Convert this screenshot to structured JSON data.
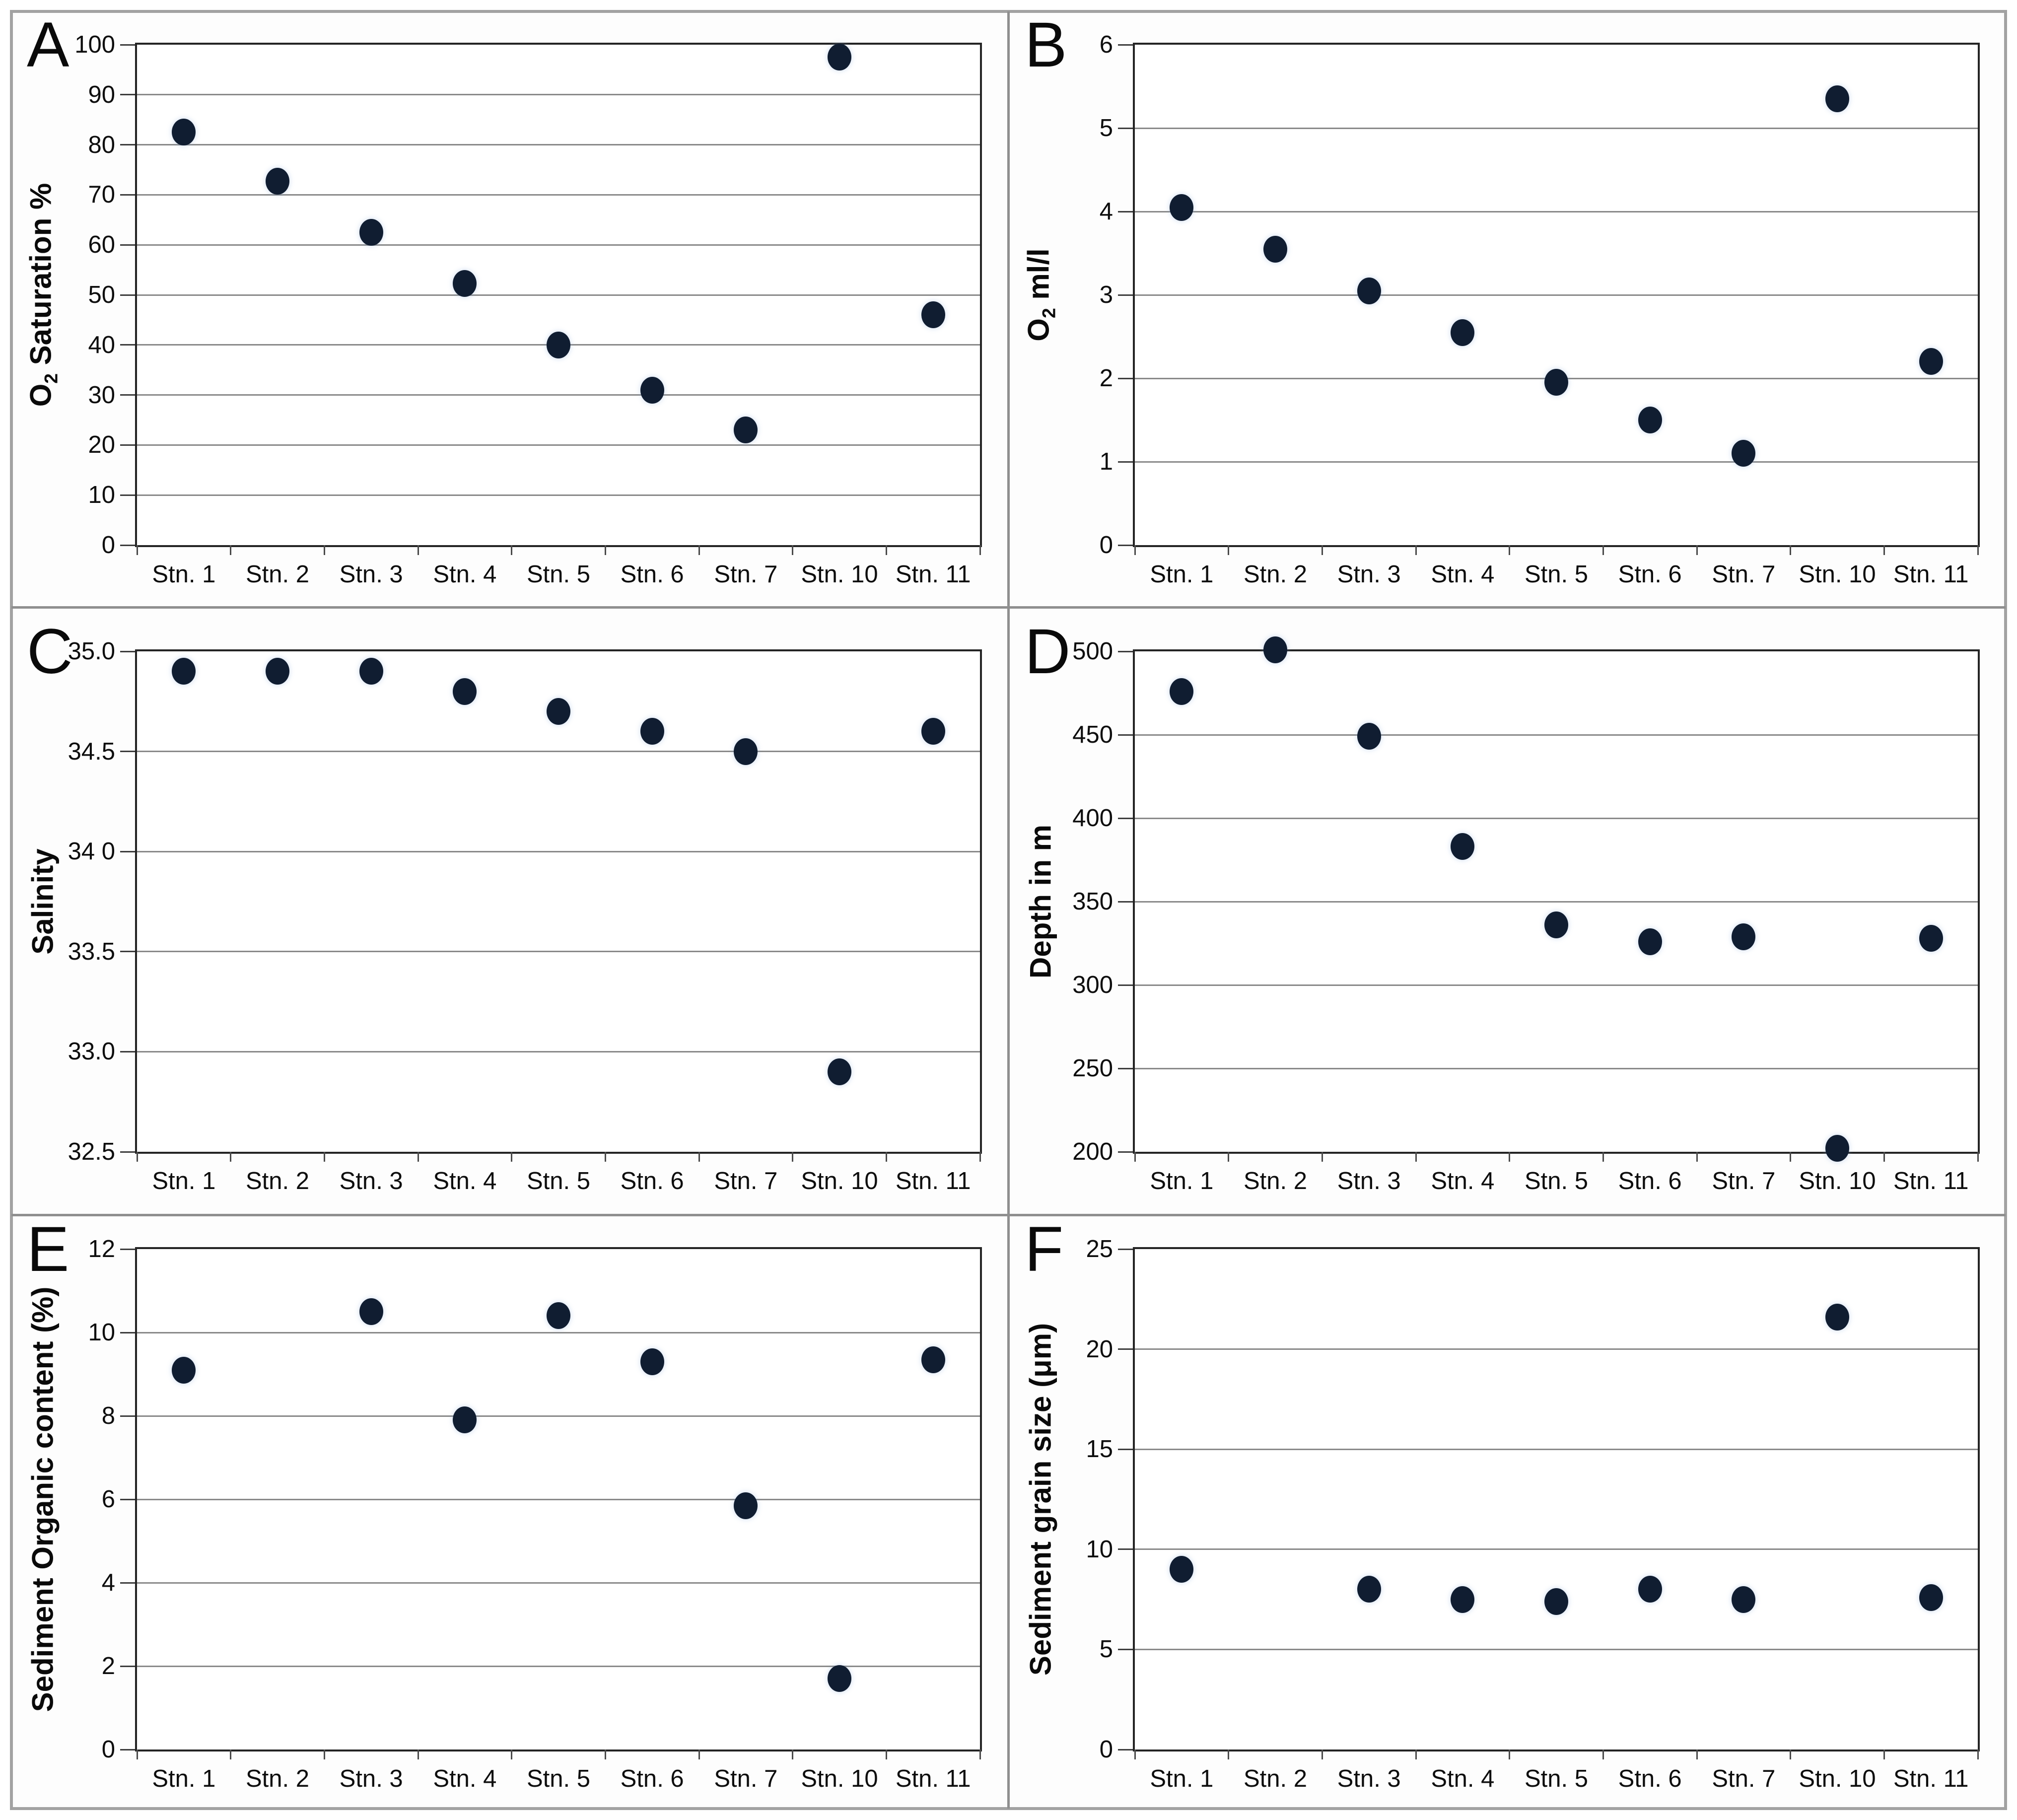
{
  "figure": {
    "background_color": "#ffffff",
    "outer_border_color": "#a2a2a2",
    "separator_color": "#8f8f8f",
    "plot_border_color": "#242424",
    "gridline_color": "#8a8a8a",
    "point_color": "#101d31",
    "categories": [
      "Stn. 1",
      "Stn. 2",
      "Stn. 3",
      "Stn. 4",
      "Stn. 5",
      "Stn. 6",
      "Stn. 7",
      "Stn. 10",
      "Stn. 11"
    ]
  },
  "chart_data": [
    {
      "panel": "A",
      "type": "scatter",
      "ylabel": "O2 Saturation %",
      "ylabel_parts": [
        {
          "text": "O"
        },
        {
          "text": "2",
          "sub": true
        },
        {
          "text": " Saturation %"
        }
      ],
      "ylim": [
        0,
        100
      ],
      "ytick_values": [
        0,
        10,
        20,
        30,
        40,
        50,
        60,
        70,
        80,
        90,
        100
      ],
      "ytick_labels": [
        "0",
        "10",
        "20",
        "30",
        "40",
        "50",
        "60",
        "70",
        "80",
        "90",
        "100"
      ],
      "categories": [
        "Stn. 1",
        "Stn. 2",
        "Stn. 3",
        "Stn. 4",
        "Stn. 5",
        "Stn. 6",
        "Stn. 7",
        "Stn. 10",
        "Stn. 11"
      ],
      "values": [
        82.5,
        72.7,
        62.5,
        52.3,
        40,
        31,
        23,
        97.5,
        46
      ],
      "grid": true,
      "legend": false
    },
    {
      "panel": "B",
      "type": "scatter",
      "ylabel": "O2 ml/l",
      "ylabel_parts": [
        {
          "text": "O"
        },
        {
          "text": "2",
          "sub": true
        },
        {
          "text": " ml/l"
        }
      ],
      "ylim": [
        0,
        6
      ],
      "ytick_values": [
        0,
        1,
        2,
        3,
        4,
        5,
        6
      ],
      "ytick_labels": [
        "0",
        "1",
        "2",
        "3",
        "4",
        "5",
        "6"
      ],
      "categories": [
        "Stn. 1",
        "Stn. 2",
        "Stn. 3",
        "Stn. 4",
        "Stn. 5",
        "Stn. 6",
        "Stn. 7",
        "Stn. 10",
        "Stn. 11"
      ],
      "values": [
        4.05,
        3.55,
        3.05,
        2.55,
        1.95,
        1.5,
        1.1,
        5.35,
        2.2
      ],
      "grid": true,
      "legend": false
    },
    {
      "panel": "C",
      "type": "scatter",
      "ylabel": "Salinity",
      "ylabel_parts": [
        {
          "text": "Salinity"
        }
      ],
      "ylim": [
        32.5,
        35.0
      ],
      "ytick_values": [
        32.5,
        33.0,
        33.5,
        34.0,
        34.5,
        35.0
      ],
      "ytick_labels": [
        "32.5",
        "33.0",
        "33.5",
        "34 0",
        "34.5",
        "35.0"
      ],
      "categories": [
        "Stn. 1",
        "Stn. 2",
        "Stn. 3",
        "Stn. 4",
        "Stn. 5",
        "Stn. 6",
        "Stn. 7",
        "Stn. 10",
        "Stn. 11"
      ],
      "values": [
        34.9,
        34.9,
        34.9,
        34.8,
        34.7,
        34.6,
        34.5,
        32.9,
        34.6
      ],
      "grid": true,
      "legend": false
    },
    {
      "panel": "D",
      "type": "scatter",
      "ylabel": "Depth in m",
      "ylabel_parts": [
        {
          "text": "Depth in m"
        }
      ],
      "ylim": [
        200,
        500
      ],
      "ytick_values": [
        200,
        250,
        300,
        350,
        400,
        450,
        500
      ],
      "ytick_labels": [
        "200",
        "250",
        "300",
        "350",
        "400",
        "450",
        "500"
      ],
      "categories": [
        "Stn. 1",
        "Stn. 2",
        "Stn. 3",
        "Stn. 4",
        "Stn. 5",
        "Stn. 6",
        "Stn. 7",
        "Stn. 10",
        "Stn. 11"
      ],
      "values": [
        476,
        501,
        449,
        383,
        336,
        326,
        329,
        202,
        328
      ],
      "grid": true,
      "legend": false
    },
    {
      "panel": "E",
      "type": "scatter",
      "ylabel": "Sediment Organic content (%)",
      "ylabel_parts": [
        {
          "text": "Sediment Organic content (%)"
        }
      ],
      "ylim": [
        0,
        12
      ],
      "ytick_values": [
        0,
        2,
        4,
        6,
        8,
        10,
        12
      ],
      "ytick_labels": [
        "0",
        "2",
        "4",
        "6",
        "8",
        "10",
        "12"
      ],
      "categories": [
        "Stn. 1",
        "Stn. 2",
        "Stn. 3",
        "Stn. 4",
        "Stn. 5",
        "Stn. 6",
        "Stn. 7",
        "Stn. 10",
        "Stn. 11"
      ],
      "values": [
        9.1,
        null,
        10.5,
        7.9,
        10.4,
        9.3,
        5.85,
        1.7,
        9.35
      ],
      "grid": true,
      "legend": false
    },
    {
      "panel": "F",
      "type": "scatter",
      "ylabel": "Sediment grain size (μm)",
      "ylabel_parts": [
        {
          "text": "Sediment grain size (μm)"
        }
      ],
      "ylim": [
        0,
        25
      ],
      "ytick_values": [
        0,
        5,
        10,
        15,
        20,
        25
      ],
      "ytick_labels": [
        "0",
        "5",
        "10",
        "15",
        "20",
        "25"
      ],
      "categories": [
        "Stn. 1",
        "Stn. 2",
        "Stn. 3",
        "Stn. 4",
        "Stn. 5",
        "Stn. 6",
        "Stn. 7",
        "Stn. 10",
        "Stn. 11"
      ],
      "values": [
        9.0,
        null,
        8.0,
        7.5,
        7.4,
        8.0,
        7.5,
        21.6,
        7.6
      ],
      "grid": true,
      "legend": false
    }
  ]
}
